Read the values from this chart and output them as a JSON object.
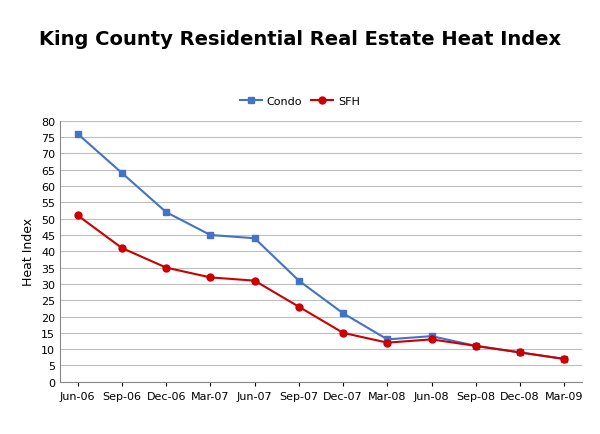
{
  "title": "King County Residential Real Estate Heat Index",
  "ylabel": "Heat Index",
  "x_labels": [
    "Jun-06",
    "Sep-06",
    "Dec-06",
    "Mar-07",
    "Jun-07",
    "Sep-07",
    "Dec-07",
    "Mar-08",
    "Jun-08",
    "Sep-08",
    "Dec-08",
    "Mar-09"
  ],
  "condo_values": [
    76,
    64,
    52,
    45,
    44,
    31,
    21,
    13,
    14,
    11,
    9,
    7
  ],
  "sfh_values": [
    51,
    41,
    35,
    32,
    31,
    23,
    15,
    12,
    13,
    11,
    9,
    7
  ],
  "condo_color": "#4472C4",
  "sfh_color": "#CC0000",
  "condo_label": "Condo",
  "sfh_label": "SFH",
  "ylim": [
    0,
    80
  ],
  "yticks": [
    0,
    5,
    10,
    15,
    20,
    25,
    30,
    35,
    40,
    45,
    50,
    55,
    60,
    65,
    70,
    75,
    80
  ],
  "background_color": "#FFFFFF",
  "grid_color": "#BEBEBE",
  "title_fontsize": 14,
  "axis_label_fontsize": 9,
  "tick_fontsize": 8,
  "legend_fontsize": 8,
  "line_width": 1.5,
  "marker_size": 5
}
